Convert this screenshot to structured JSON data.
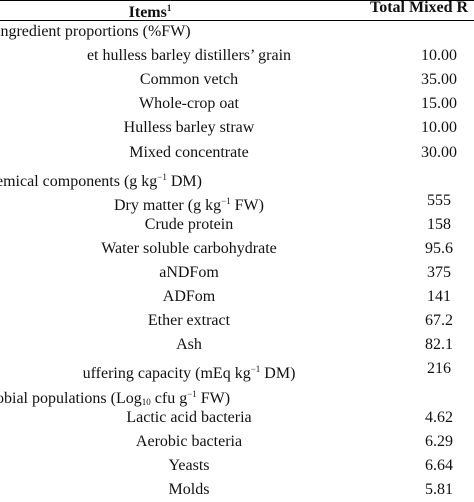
{
  "header": {
    "items_label": "Items",
    "items_superscript": "1",
    "value_label": "Total Mixed R"
  },
  "rows": [
    {
      "kind": "section",
      "label": "ingredient proportions (%FW)",
      "value": ""
    },
    {
      "kind": "item",
      "label": "et hulless barley distillers’ grain",
      "value": "10.00"
    },
    {
      "kind": "item",
      "label": "Common vetch",
      "value": "35.00"
    },
    {
      "kind": "item",
      "label": "Whole-crop oat",
      "value": "15.00"
    },
    {
      "kind": "item",
      "label": "Hulless barley straw",
      "value": "10.00"
    },
    {
      "kind": "item",
      "label": "Mixed concentrate",
      "value": "30.00"
    },
    {
      "kind": "section",
      "label_html": "emical components (g kg<sup>−1</sup> DM)",
      "value": ""
    },
    {
      "kind": "item",
      "label_html": "Dry matter (g kg<sup>−1</sup> FW)",
      "value": "555"
    },
    {
      "kind": "item",
      "label": "Crude protein",
      "value": "158"
    },
    {
      "kind": "item",
      "label": "Water soluble carbohydrate",
      "value": "95.6"
    },
    {
      "kind": "item",
      "label": "aNDFom",
      "value": "375"
    },
    {
      "kind": "item",
      "label": "ADFom",
      "value": "141"
    },
    {
      "kind": "item",
      "label": "Ether extract",
      "value": "67.2"
    },
    {
      "kind": "item",
      "label": "Ash",
      "value": "82.1"
    },
    {
      "kind": "item",
      "label_html": "uffering capacity (mEq kg<sup>−1</sup> DM)",
      "value": "216"
    },
    {
      "kind": "section",
      "label_html": "obial populations (Log<sub>10</sub> cfu g<sup>−1</sup> FW)",
      "value": ""
    },
    {
      "kind": "item",
      "label": "Lactic acid bacteria",
      "value": "4.62"
    },
    {
      "kind": "item",
      "label": "Aerobic bacteria",
      "value": "6.29"
    },
    {
      "kind": "item",
      "label": "Yeasts",
      "value": "6.64"
    },
    {
      "kind": "item",
      "label": "Molds",
      "value": "5.81"
    }
  ]
}
